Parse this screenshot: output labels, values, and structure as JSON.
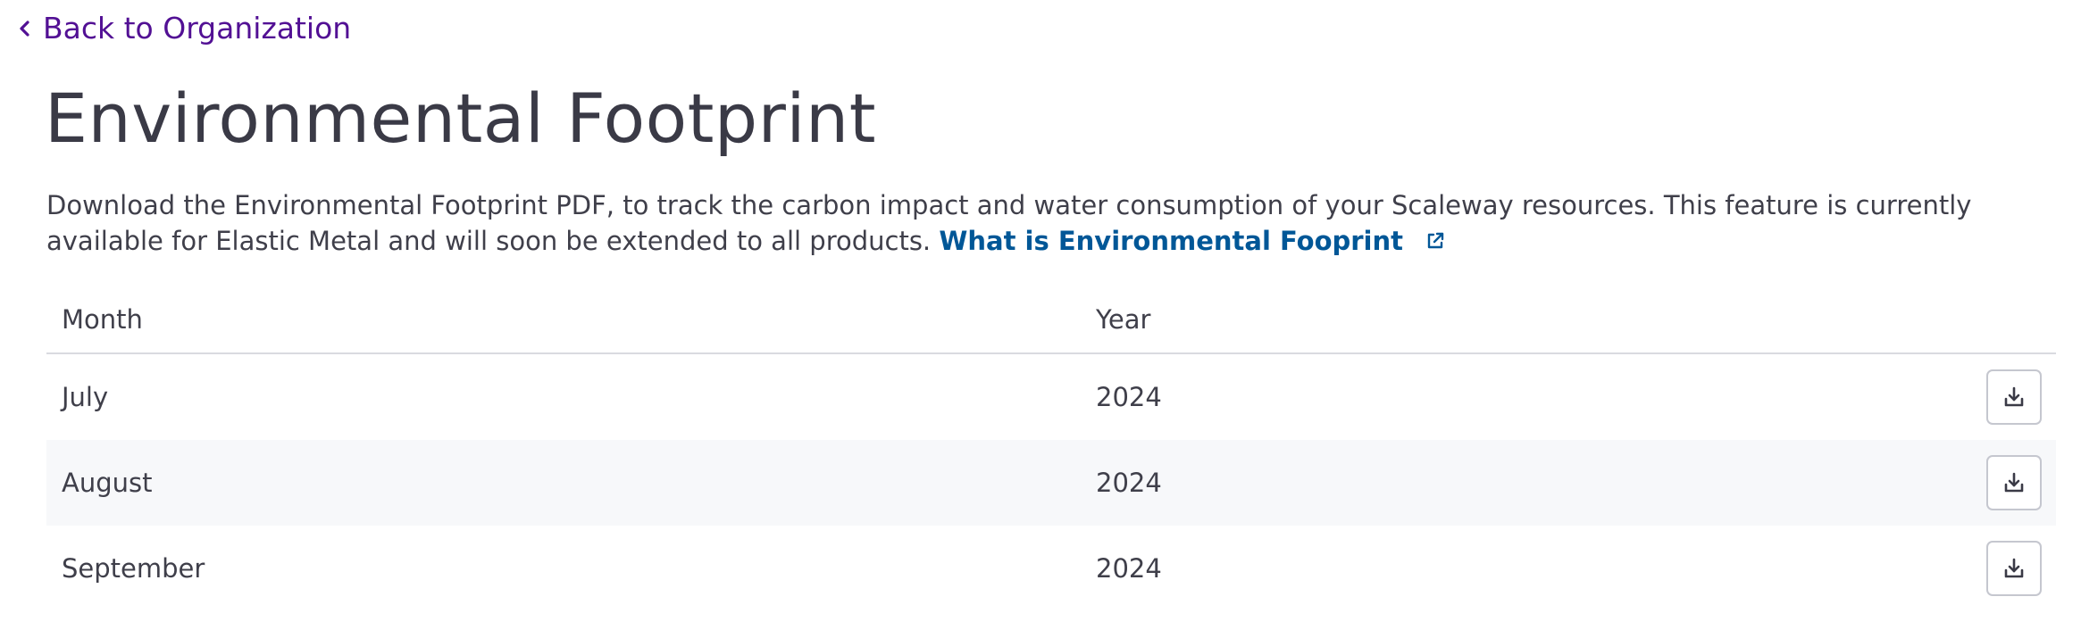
{
  "nav": {
    "back_label": "Back to Organization"
  },
  "page": {
    "title": "Environmental Footprint",
    "description": "Download the Environmental Footprint PDF, to track the carbon impact and water consumption of your Scaleway resources. This feature is currently available for Elastic Metal and will soon be extended to all products.",
    "info_link_label": "What is Environmental Fooprint"
  },
  "table": {
    "columns": [
      "Month",
      "Year"
    ],
    "rows": [
      {
        "month": "July",
        "year": "2024"
      },
      {
        "month": "August",
        "year": "2024"
      },
      {
        "month": "September",
        "year": "2024"
      }
    ]
  },
  "icons": {
    "back": "chevron-left-icon",
    "external": "external-link-icon",
    "download": "download-icon"
  },
  "colors": {
    "back_link": "#521094",
    "info_link": "#005797",
    "text": "#3f3f4a",
    "row_alt_bg": "#f7f8fa",
    "divider": "#d9dae0"
  }
}
